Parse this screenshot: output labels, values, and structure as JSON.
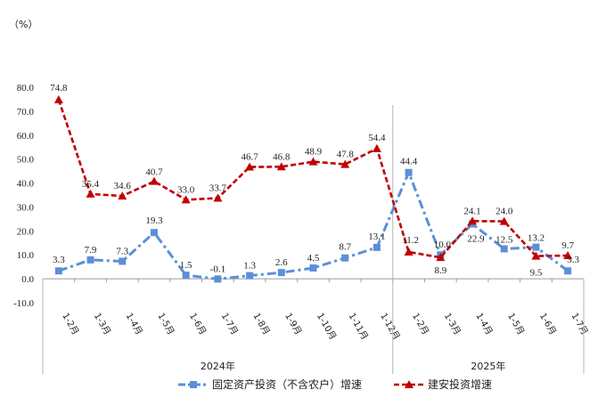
{
  "chart_data": {
    "type": "line",
    "unit": "（%）",
    "categories": [
      "1-2月",
      "1-3月",
      "1-4月",
      "1-5月",
      "1-6月",
      "1-7月",
      "1-8月",
      "1-9月",
      "1-10月",
      "1-11月",
      "1-12月",
      "1-2月",
      "1-3月",
      "1-4月",
      "1-5月",
      "1-6月",
      "1-7月"
    ],
    "groups": [
      {
        "label": "2024年",
        "start": 0,
        "end": 10
      },
      {
        "label": "2025年",
        "start": 11,
        "end": 16
      }
    ],
    "ylim": [
      -10,
      80
    ],
    "yticks": [
      "-10.0",
      "0.0",
      "10.0",
      "20.0",
      "30.0",
      "40.0",
      "50.0",
      "60.0",
      "70.0",
      "80.0"
    ],
    "series": [
      {
        "name": "固定资产投资（不含农户）增速",
        "color": "#5B8FD8",
        "marker": "square",
        "dash": "dashdot",
        "values": [
          3.3,
          7.9,
          7.3,
          19.3,
          1.5,
          -0.1,
          1.3,
          2.6,
          4.5,
          8.7,
          13.1,
          44.4,
          10.0,
          22.9,
          12.5,
          13.2,
          3.3
        ],
        "labels": [
          "3.3",
          "7.9",
          "7.3",
          "19.3",
          "1.5",
          "-0.1",
          "1.3",
          "2.6",
          "4.5",
          "8.7",
          "13.1",
          "44.4",
          "10.0",
          "22.9",
          "12.5",
          "13.2",
          "3.3"
        ]
      },
      {
        "name": "建安投资增速",
        "color": "#C00000",
        "marker": "triangle",
        "dash": "dash",
        "values": [
          74.8,
          35.4,
          34.6,
          40.7,
          33.0,
          33.7,
          46.7,
          46.8,
          48.9,
          47.8,
          54.4,
          11.2,
          8.9,
          24.1,
          24.0,
          9.5,
          9.7
        ],
        "labels": [
          "74.8",
          "35.4",
          "34.6",
          "40.7",
          "33.0",
          "33.7",
          "46.7",
          "46.8",
          "48.9",
          "47.8",
          "54.4",
          "11.2",
          "8.9",
          "24.1",
          "24.0",
          "9.5",
          "9.7"
        ]
      }
    ]
  }
}
